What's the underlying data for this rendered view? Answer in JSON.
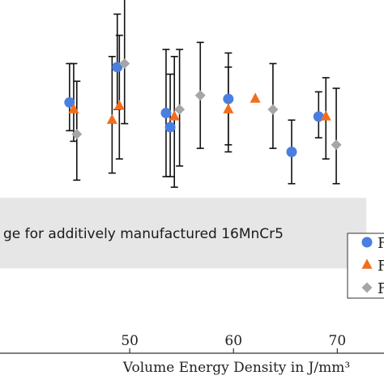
{
  "chart_data": {
    "type": "scatter",
    "title": "",
    "xlabel": "Volume Energy Density in J/mm³",
    "ylabel": "",
    "xlim": [
      37.5,
      74.5
    ],
    "ylim": [
      0,
      10
    ],
    "x_ticks": [
      50,
      60,
      70
    ],
    "x_tick_labels": [
      "50",
      "60",
      "70"
    ],
    "band": {
      "label": "ge for additively manufactured 16MnCr5",
      "y_from": 2.4,
      "y_to": 4.4,
      "x_to": 72.8,
      "color": "#e6e6e6"
    },
    "legend": {
      "position": "bottom-right",
      "entries": [
        "F",
        "F",
        "F"
      ]
    },
    "series": [
      {
        "marker": "circle",
        "color": "#4a7fe0",
        "points": [
          {
            "x": 44.2,
            "y": 7.1,
            "err_low": 0.8,
            "err_high": 1.1
          },
          {
            "x": 48.8,
            "y": 8.1,
            "err_low": 1.2,
            "err_high": 1.5
          },
          {
            "x": 53.5,
            "y": 6.8,
            "err_low": 1.8,
            "err_high": 1.8
          },
          {
            "x": 53.9,
            "y": 6.4,
            "err_low": 1.4,
            "err_high": 1.5
          },
          {
            "x": 59.5,
            "y": 7.2,
            "err_low": 1.5,
            "err_high": 1.3
          },
          {
            "x": 65.6,
            "y": 5.7,
            "err_low": 0.9,
            "err_high": 0.9
          },
          {
            "x": 68.2,
            "y": 6.7,
            "err_low": 0.6,
            "err_high": 0.7
          }
        ]
      },
      {
        "marker": "triangle",
        "color": "#f26e1c",
        "points": [
          {
            "x": 44.6,
            "y": 6.9,
            "err_low": 0.9,
            "err_high": 1.3
          },
          {
            "x": 48.3,
            "y": 6.6,
            "err_low": 1.5,
            "err_high": 1.8
          },
          {
            "x": 49.0,
            "y": 7.0,
            "err_low": 1.5,
            "err_high": 2.0
          },
          {
            "x": 54.3,
            "y": 6.7,
            "err_low": 2.0,
            "err_high": 1.7
          },
          {
            "x": 59.5,
            "y": 6.9,
            "err_low": 1.0,
            "err_high": 1.2
          },
          {
            "x": 62.1,
            "y": 7.2,
            "err_low": 0.0,
            "err_high": 0.0
          },
          {
            "x": 68.9,
            "y": 6.7,
            "err_low": 1.2,
            "err_high": 1.1
          }
        ]
      },
      {
        "marker": "diamond",
        "color": "#a6a6a6",
        "points": [
          {
            "x": 44.9,
            "y": 6.2,
            "err_low": 1.3,
            "err_high": 1.5
          },
          {
            "x": 49.5,
            "y": 8.2,
            "err_low": 1.7,
            "err_high": 1.9
          },
          {
            "x": 54.8,
            "y": 6.9,
            "err_low": 1.6,
            "err_high": 1.7
          },
          {
            "x": 56.8,
            "y": 7.3,
            "err_low": 1.5,
            "err_high": 1.5
          },
          {
            "x": 63.8,
            "y": 6.9,
            "err_low": 1.1,
            "err_high": 1.3
          },
          {
            "x": 69.9,
            "y": 5.9,
            "err_low": 1.1,
            "err_high": 1.6
          }
        ]
      }
    ],
    "series_colors": [
      "#4a7fe0",
      "#f26e1c",
      "#a6a6a6"
    ]
  }
}
